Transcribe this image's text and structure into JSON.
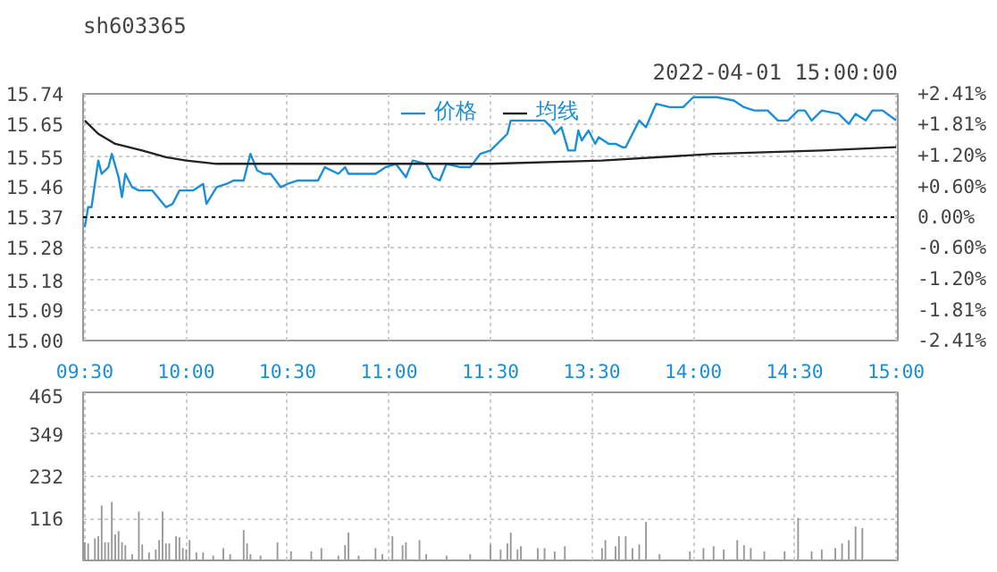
{
  "chart_data": [
    {
      "type": "line",
      "title": "sh603365",
      "annotations": [
        "2022-04-01 15:00:00"
      ],
      "legend": "top",
      "grid": true,
      "categories": [
        "09:30",
        null,
        null,
        null,
        null,
        null,
        null,
        null,
        null,
        null,
        null,
        null,
        null,
        null,
        null,
        null,
        null,
        null,
        null,
        null,
        null,
        null,
        null,
        null,
        null,
        null,
        null,
        null,
        null,
        null,
        "10:00",
        null,
        null,
        null,
        null,
        null,
        null,
        null,
        null,
        null,
        null,
        null,
        null,
        null,
        null,
        null,
        null,
        null,
        null,
        null,
        null,
        null,
        null,
        null,
        null,
        null,
        null,
        null,
        null,
        null,
        "10:30",
        null,
        null,
        null,
        null,
        null,
        null,
        null,
        null,
        null,
        null,
        null,
        null,
        null,
        null,
        null,
        null,
        null,
        null,
        null,
        null,
        null,
        null,
        null,
        null,
        null,
        null,
        null,
        null,
        null,
        "11:00",
        null,
        null,
        null,
        null,
        null,
        null,
        null,
        null,
        null,
        null,
        null,
        null,
        null,
        null,
        null,
        null,
        null,
        null,
        null,
        null,
        null,
        null,
        null,
        null,
        null,
        null,
        null,
        null,
        null,
        "11:30",
        null,
        null,
        null,
        null,
        null,
        null,
        null,
        null,
        null,
        null,
        null,
        null,
        null,
        null,
        null,
        null,
        null,
        null,
        null,
        null,
        null,
        null,
        null,
        null,
        null,
        null,
        null,
        null,
        null,
        "13:30",
        null,
        null,
        null,
        null,
        null,
        null,
        null,
        null,
        null,
        null,
        null,
        null,
        null,
        null,
        null,
        null,
        null,
        null,
        null,
        null,
        null,
        null,
        null,
        null,
        null,
        null,
        null,
        null,
        null,
        "14:00",
        null,
        null,
        null,
        null,
        null,
        null,
        null,
        null,
        null,
        null,
        null,
        null,
        null,
        null,
        null,
        null,
        null,
        null,
        null,
        null,
        null,
        null,
        null,
        null,
        null,
        null,
        null,
        null,
        null,
        "14:30",
        null,
        null,
        null,
        null,
        null,
        null,
        null,
        null,
        null,
        null,
        null,
        null,
        null,
        null,
        null,
        null,
        null,
        null,
        null,
        null,
        null,
        null,
        null,
        null,
        null,
        null,
        null,
        null,
        null,
        "15:00"
      ],
      "ylim": [
        15.0,
        15.74
      ],
      "yticks": [
        {
          "value": 15.0,
          "label": "15.00"
        },
        15.09,
        15.18,
        15.28,
        15.37,
        15.46,
        15.55,
        15.65,
        15.74
      ],
      "y2lim": [
        -2.41,
        2.41
      ],
      "y2ticks": [
        {
          "value": -2.41,
          "label": "-2.41%"
        },
        {
          "value": -1.81,
          "label": "-1.81%"
        },
        {
          "value": -1.2,
          "label": "-1.20%"
        },
        {
          "value": -0.6,
          "label": "-0.60%"
        },
        {
          "value": 0,
          "label": "0.00%"
        },
        {
          "value": 0.6,
          "label": "+0.60%"
        },
        {
          "value": 1.2,
          "label": "+1.20%"
        },
        {
          "value": 1.81,
          "label": "+1.81%"
        },
        {
          "value": 2.41,
          "label": "+2.41%"
        }
      ],
      "ref_lines": [
        {
          "axis": "y",
          "value": 15.37,
          "color": "#000000",
          "line_style": "dotted"
        }
      ],
      "series": [
        {
          "name": "价格",
          "color": "#1a8fd8",
          "values": [
            15.34,
            15.4,
            15.4,
            15.47,
            15.54,
            15.5,
            null,
            15.52,
            15.56,
            null,
            15.49,
            15.43,
            15.5,
            null,
            15.46,
            null,
            15.45,
            null,
            null,
            null,
            15.45,
            null,
            null,
            null,
            15.4,
            null,
            15.41,
            null,
            15.45,
            null,
            null,
            null,
            15.45,
            null,
            null,
            15.47,
            15.41,
            null,
            null,
            15.46,
            null,
            null,
            15.47,
            null,
            15.48,
            null,
            null,
            15.48,
            null,
            15.56,
            null,
            15.51,
            null,
            15.5,
            null,
            15.5,
            null,
            null,
            15.46,
            null,
            15.47,
            null,
            null,
            15.48,
            null,
            null,
            null,
            null,
            null,
            15.48,
            null,
            15.52,
            null,
            null,
            null,
            15.5,
            null,
            15.52,
            15.5,
            null,
            null,
            null,
            null,
            null,
            null,
            null,
            15.5,
            null,
            null,
            15.52,
            null,
            null,
            15.53,
            null,
            null,
            15.49,
            null,
            15.54,
            null,
            null,
            null,
            15.53,
            null,
            15.49,
            null,
            15.48,
            null,
            15.53,
            null,
            null,
            null,
            15.52,
            null,
            null,
            15.52,
            null,
            null,
            15.56,
            null,
            null,
            15.57,
            null,
            null,
            null,
            null,
            15.62,
            15.66,
            null,
            null,
            null,
            null,
            null,
            15.66,
            null,
            null,
            null,
            15.66,
            null,
            15.64,
            15.62,
            null,
            15.64,
            null,
            15.57,
            null,
            15.57,
            15.63,
            15.6,
            null,
            15.63,
            null,
            15.59,
            15.61,
            null,
            null,
            15.59,
            null,
            15.59,
            null,
            15.58,
            15.58,
            null,
            null,
            null,
            15.66,
            null,
            15.64,
            null,
            null,
            15.71,
            null,
            null,
            null,
            15.7,
            null,
            null,
            null,
            15.7,
            null,
            null,
            15.73,
            null,
            15.73,
            null,
            null,
            null,
            null,
            15.73,
            null,
            null,
            null,
            null,
            15.72,
            null,
            null,
            15.7,
            null,
            null,
            15.69,
            null,
            null,
            null,
            15.69,
            null,
            null,
            15.66,
            null,
            null,
            15.66,
            null,
            null,
            15.69,
            null,
            15.69,
            null,
            15.66,
            null,
            null,
            15.69,
            null,
            null,
            null,
            null,
            15.68,
            null,
            null,
            15.65,
            null,
            15.68,
            null,
            null,
            15.66,
            null,
            15.69,
            null,
            null,
            15.69,
            null,
            null,
            null,
            15.66
          ]
        },
        {
          "name": "均线",
          "color": "#222222",
          "values": [
            15.66,
            null,
            null,
            null,
            15.62,
            null,
            null,
            null,
            null,
            15.59,
            null,
            null,
            null,
            null,
            null,
            null,
            null,
            15.57,
            null,
            null,
            null,
            null,
            null,
            null,
            15.55,
            null,
            null,
            null,
            null,
            null,
            15.54,
            null,
            null,
            null,
            null,
            null,
            null,
            null,
            null,
            15.53,
            null,
            null,
            null,
            null,
            null,
            null,
            null,
            null,
            null,
            null,
            null,
            null,
            null,
            null,
            null,
            null,
            null,
            15.53,
            null,
            null,
            null,
            null,
            null,
            null,
            null,
            null,
            null,
            null,
            null,
            null,
            null,
            null,
            null,
            null,
            null,
            null,
            null,
            null,
            null,
            null,
            null,
            null,
            null,
            null,
            null,
            null,
            null,
            null,
            null,
            null,
            null,
            null,
            null,
            null,
            null,
            null,
            null,
            null,
            null,
            null,
            null,
            null,
            null,
            null,
            null,
            null,
            null,
            null,
            null,
            null,
            null,
            null,
            null,
            null,
            null,
            null,
            null,
            null,
            null,
            null,
            15.53,
            null,
            null,
            null,
            null,
            null,
            null,
            null,
            null,
            null,
            null,
            null,
            null,
            null,
            null,
            null,
            null,
            null,
            null,
            null,
            null,
            null,
            null,
            null,
            null,
            null,
            null,
            null,
            null,
            null,
            null,
            null,
            null,
            15.54,
            null,
            null,
            null,
            null,
            null,
            null,
            null,
            null,
            null,
            null,
            null,
            null,
            null,
            null,
            null,
            null,
            null,
            null,
            null,
            null,
            null,
            null,
            null,
            null,
            null,
            null,
            null,
            null,
            null,
            null,
            null,
            null,
            15.56,
            null,
            null,
            null,
            null,
            null,
            null,
            null,
            null,
            null,
            null,
            null,
            null,
            null,
            null,
            null,
            null,
            null,
            null,
            null,
            null,
            null,
            null,
            null,
            null,
            null,
            null,
            null,
            null,
            null,
            null,
            null,
            15.57,
            null,
            null,
            null,
            null,
            null,
            null,
            null,
            null,
            null,
            null,
            null,
            null,
            null,
            null,
            null,
            null,
            null,
            null,
            null,
            null,
            null,
            15.58
          ]
        }
      ]
    },
    {
      "type": "bar",
      "grid": true,
      "tick_labels": "y",
      "categories": [
        null,
        null,
        null,
        null,
        null,
        null,
        null,
        null,
        null,
        null,
        null,
        null,
        null,
        null,
        null,
        null,
        null,
        null,
        null,
        null,
        null,
        null,
        null,
        null,
        null,
        null,
        null,
        null,
        null,
        null,
        null,
        null,
        null,
        null,
        null,
        null,
        null,
        null,
        null,
        null,
        null,
        null,
        null,
        null,
        null,
        null,
        null,
        null,
        null,
        null,
        null,
        null,
        null,
        null,
        null,
        null,
        null,
        null,
        null,
        null,
        null,
        null,
        null,
        null,
        null,
        null,
        null,
        null,
        null,
        null,
        null,
        null,
        null,
        null,
        null,
        null,
        null,
        null,
        null,
        null,
        null,
        null,
        null,
        null,
        null,
        null,
        null,
        null,
        null,
        null,
        null,
        null,
        null,
        null,
        null,
        null,
        null,
        null,
        null,
        null,
        null,
        null,
        null,
        null,
        null,
        null,
        null,
        null,
        null,
        null,
        null,
        null,
        null,
        null,
        null,
        null,
        null,
        null,
        null,
        null,
        null,
        null,
        null,
        null,
        null,
        null,
        null,
        null,
        null,
        null,
        null,
        null,
        null,
        null,
        null,
        null,
        null,
        null,
        null,
        null,
        null,
        null,
        null,
        null,
        null,
        null,
        null,
        null,
        null,
        null,
        null,
        null,
        null,
        null,
        null,
        null,
        null,
        null,
        null,
        null,
        null,
        null,
        null,
        null,
        null,
        null,
        null,
        null,
        null,
        null,
        null,
        null,
        null,
        null,
        null,
        null,
        null,
        null,
        null,
        null,
        null,
        null,
        null,
        null,
        null,
        null,
        null,
        null,
        null,
        null,
        null,
        null,
        null,
        null,
        null,
        null,
        null,
        null,
        null,
        null,
        null,
        null,
        null,
        null,
        null,
        null,
        null,
        null,
        null,
        null,
        null,
        null,
        null,
        null,
        null,
        null,
        null,
        null,
        null,
        null,
        null,
        null,
        null,
        null,
        null,
        null,
        null,
        null,
        null,
        null,
        null,
        null,
        null,
        null,
        null,
        null,
        null,
        null,
        null,
        null,
        null
      ],
      "ylim": [
        0,
        465
      ],
      "yticks": [
        116,
        232,
        349,
        465
      ],
      "series": [
        {
          "color": "#999999",
          "values": [
            50,
            47,
            null,
            61,
            67,
            152,
            50,
            50,
            162,
            72,
            81,
            50,
            42,
            null,
            17,
            null,
            135,
            44,
            null,
            22,
            null,
            30,
            56,
            135,
            47,
            47,
            null,
            67,
            64,
            34,
            30,
            56,
            null,
            22,
            null,
            22,
            null,
            null,
            13,
            null,
            null,
            34,
            null,
            17,
            null,
            null,
            null,
            84,
            47,
            17,
            null,
            null,
            13,
            null,
            null,
            null,
            null,
            50,
            null,
            null,
            null,
            25,
            null,
            null,
            null,
            null,
            null,
            25,
            null,
            null,
            34,
            null,
            null,
            null,
            null,
            13,
            null,
            42,
            77,
            null,
            null,
            13,
            null,
            null,
            null,
            null,
            34,
            null,
            17,
            null,
            null,
            67,
            null,
            null,
            42,
            50,
            null,
            null,
            null,
            56,
            null,
            17,
            null,
            null,
            null,
            null,
            null,
            13,
            null,
            null,
            null,
            null,
            null,
            null,
            17,
            null,
            null,
            null,
            null,
            null,
            44,
            null,
            null,
            30,
            null,
            47,
            77,
            null,
            30,
            39,
            null,
            null,
            null,
            null,
            34,
            null,
            34,
            null,
            null,
            25,
            null,
            null,
            39,
            null,
            null,
            null,
            null,
            null,
            null,
            null,
            null,
            null,
            null,
            34,
            56,
            null,
            null,
            39,
            67,
            null,
            67,
            null,
            34,
            null,
            44,
            null,
            106,
            null,
            null,
            null,
            17,
            null,
            null,
            null,
            null,
            null,
            null,
            null,
            null,
            25,
            null,
            null,
            null,
            34,
            null,
            null,
            39,
            null,
            null,
            30,
            null,
            null,
            null,
            56,
            null,
            42,
            null,
            34,
            null,
            null,
            null,
            25,
            null,
            null,
            null,
            null,
            null,
            25,
            null,
            null,
            null,
            118,
            null,
            null,
            null,
            25,
            null,
            null,
            30,
            null,
            null,
            null,
            34,
            null,
            47,
            null,
            56,
            null,
            94,
            null,
            89,
            null,
            null,
            null,
            null,
            null,
            null,
            null,
            null,
            null,
            null
          ]
        }
      ]
    }
  ]
}
